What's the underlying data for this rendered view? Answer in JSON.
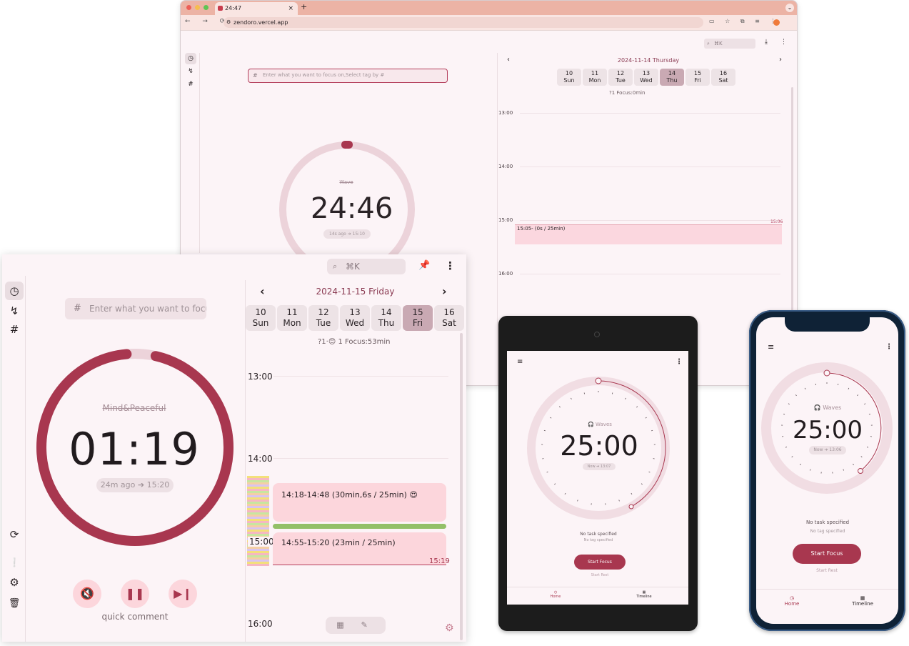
{
  "browser": {
    "tab_title": "24:47",
    "tab_close": "×",
    "new_tab": "+",
    "url": "zendoro.vercel.app",
    "nav_glyphs": "← → ⟳",
    "search_label": "⌘K",
    "task_placeholder": "Enter what you want to focus on,Select tag by #",
    "sound_name": "Wave",
    "timer": "24:46",
    "ago": "14s ago ➔ 15:10",
    "date_title": "2024-11-14 Thursday",
    "days": [
      {
        "num": "10",
        "name": "Sun"
      },
      {
        "num": "11",
        "name": "Mon"
      },
      {
        "num": "12",
        "name": "Tue"
      },
      {
        "num": "13",
        "name": "Wed"
      },
      {
        "num": "14",
        "name": "Thu"
      },
      {
        "num": "15",
        "name": "Fri"
      },
      {
        "num": "16",
        "name": "Sat"
      }
    ],
    "focus_summary": "?1   Focus:0min",
    "hours": [
      "13:00",
      "14:00",
      "15:00",
      "16:00"
    ],
    "event": "15:05- (0s / 25min)",
    "event_end": "15:06"
  },
  "main": {
    "search_label": "⌘K",
    "task_placeholder": "Enter what you want to focus on,Select tag by #",
    "sound_name": "Mind&Peaceful",
    "timer": "01:19",
    "ago": "24m ago ➔ 15:20",
    "quick_comment": "quick comment",
    "date_title": "2024-11-15 Friday",
    "days": [
      {
        "num": "10",
        "name": "Sun"
      },
      {
        "num": "11",
        "name": "Mon"
      },
      {
        "num": "12",
        "name": "Tue"
      },
      {
        "num": "13",
        "name": "Wed"
      },
      {
        "num": "14",
        "name": "Thu"
      },
      {
        "num": "15",
        "name": "Fri"
      },
      {
        "num": "16",
        "name": "Sat"
      }
    ],
    "focus_summary": "?1·😊 1    Focus:53min",
    "hours": [
      "13:00",
      "14:00",
      "15:00",
      "16:00"
    ],
    "event1": "14:18-14:48 (30min,6s / 25min) 😍",
    "event2": "14:55-15:20 (23min / 25min)",
    "event2_end": "15:19",
    "progress": 0.95
  },
  "tablet": {
    "sound_name": "Waves",
    "timer": "25:00",
    "ago": "Now ➔ 13:07",
    "task": "No task specified",
    "tag": "No tag specified",
    "start": "Start Focus",
    "rest": "Start Rest",
    "nav_home": "Home",
    "nav_timeline": "Timeline"
  },
  "phone": {
    "sound_name": "Waves",
    "timer": "25:00",
    "ago": "Now ➔ 13:06",
    "task": "No task specified",
    "tag": "No tag specified",
    "start": "Start Focus",
    "rest": "Start Rest",
    "nav_home": "Home",
    "nav_timeline": "Timeline"
  },
  "colors": {
    "accent": "#a8374f",
    "ring_track": "#ecd3da",
    "background": "#fcf4f7",
    "tab_bar": "#ecb3a5"
  }
}
